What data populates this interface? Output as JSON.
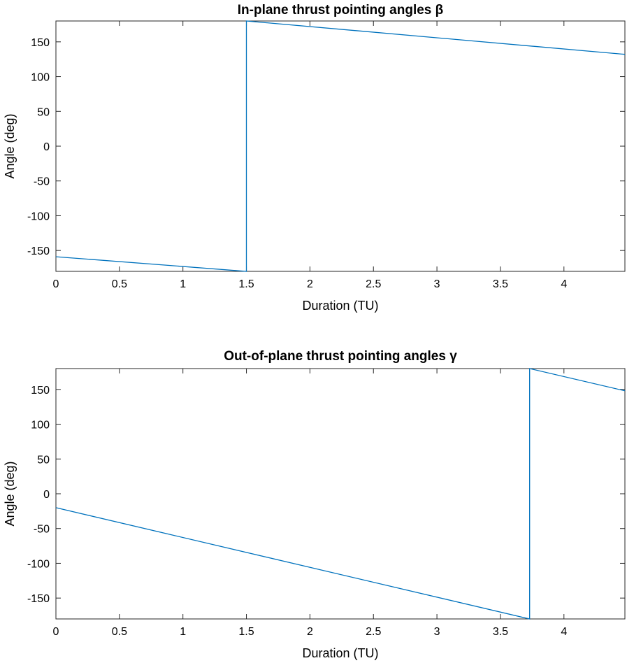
{
  "chart_data": [
    {
      "type": "line",
      "title": "In-plane thrust pointing angles β",
      "xlabel": "Duration (TU)",
      "ylabel": "Angle (deg)",
      "xlim": [
        0,
        4.48
      ],
      "ylim": [
        -180,
        180
      ],
      "xticks": [
        0,
        0.5,
        1,
        1.5,
        2,
        2.5,
        3,
        3.5,
        4
      ],
      "xtick_labels": [
        "0",
        "0.5",
        "1",
        "1.5",
        "2",
        "2.5",
        "3",
        "3.5",
        "4"
      ],
      "yticks": [
        -150,
        -100,
        -50,
        0,
        50,
        100,
        150
      ],
      "ytick_labels": [
        "-150",
        "-100",
        "-50",
        "0",
        "50",
        "100",
        "150"
      ],
      "grid": false,
      "color": "#0072BD",
      "series": [
        {
          "x": [
            0,
            1.5,
            1.5,
            4.48
          ],
          "y": [
            -159,
            -180,
            180,
            132
          ]
        }
      ]
    },
    {
      "type": "line",
      "title": "Out-of-plane thrust pointing angles γ",
      "xlabel": "Duration (TU)",
      "ylabel": "Angle (deg)",
      "xlim": [
        0,
        4.48
      ],
      "ylim": [
        -180,
        180
      ],
      "xticks": [
        0,
        0.5,
        1,
        1.5,
        2,
        2.5,
        3,
        3.5,
        4
      ],
      "xtick_labels": [
        "0",
        "0.5",
        "1",
        "1.5",
        "2",
        "2.5",
        "3",
        "3.5",
        "4"
      ],
      "yticks": [
        -150,
        -100,
        -50,
        0,
        50,
        100,
        150
      ],
      "ytick_labels": [
        "-150",
        "-100",
        "-50",
        "0",
        "50",
        "100",
        "150"
      ],
      "grid": false,
      "color": "#0072BD",
      "series": [
        {
          "x": [
            0,
            3.73,
            3.73,
            4.48
          ],
          "y": [
            -20,
            -180,
            180,
            148
          ]
        }
      ]
    }
  ]
}
